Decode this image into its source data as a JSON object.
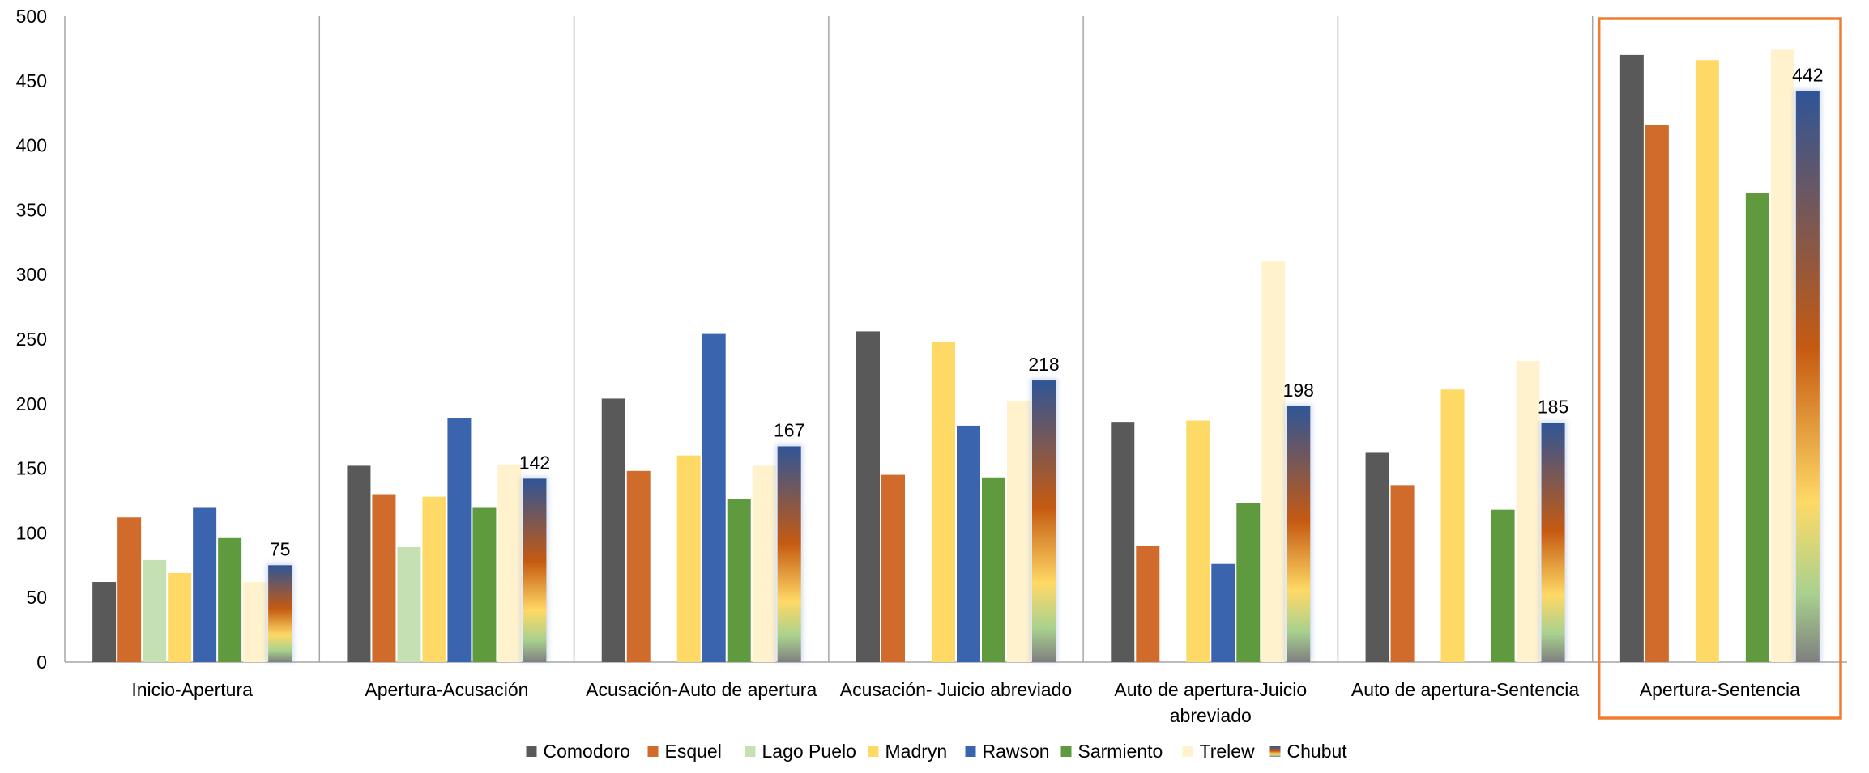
{
  "chart_data": {
    "type": "bar",
    "title": "",
    "xlabel": "",
    "ylabel": "",
    "ylim": [
      0,
      500
    ],
    "yticks": [
      0,
      50,
      100,
      150,
      200,
      250,
      300,
      350,
      400,
      450,
      500
    ],
    "grid": "vertical separators between categories",
    "legend_position": "bottom",
    "categories": [
      [
        "Inicio-Apertura"
      ],
      [
        "Apertura-Acusación"
      ],
      [
        "Acusación-Auto de apertura"
      ],
      [
        "Acusación- Juicio abreviado"
      ],
      [
        "Auto de apertura-Juicio",
        "abreviado"
      ],
      [
        "Auto de apertura-Sentencia"
      ],
      [
        "Apertura-Sentencia"
      ]
    ],
    "highlighted_category": "Apertura-Sentencia",
    "series": [
      {
        "name": "Comodoro",
        "color": "#595959",
        "values": [
          62,
          152,
          204,
          256,
          186,
          162,
          470
        ]
      },
      {
        "name": "Esquel",
        "color": "#D06B2B",
        "values": [
          112,
          130,
          148,
          145,
          90,
          137,
          416
        ]
      },
      {
        "name": "Lago Puelo",
        "color": "#C5E0B3",
        "values": [
          79,
          89,
          null,
          null,
          null,
          null,
          null
        ]
      },
      {
        "name": "Madryn",
        "color": "#FFD966",
        "values": [
          69,
          128,
          160,
          248,
          187,
          211,
          466
        ]
      },
      {
        "name": "Rawson",
        "color": "#3B64AE",
        "values": [
          120,
          189,
          254,
          183,
          76,
          null,
          null
        ]
      },
      {
        "name": "Sarmiento",
        "color": "#5F9A3F",
        "values": [
          96,
          120,
          126,
          143,
          123,
          118,
          363
        ]
      },
      {
        "name": "Trelew",
        "color": "#FFF2CC",
        "values": [
          62,
          153,
          152,
          202,
          310,
          233,
          474
        ]
      },
      {
        "name": "Chubut",
        "color": "gradient",
        "values": [
          75,
          142,
          167,
          218,
          198,
          185,
          442
        ]
      }
    ],
    "data_labels": {
      "series": "Chubut",
      "values": [
        "75",
        "142",
        "167",
        "218",
        "198",
        "185",
        "442"
      ]
    }
  },
  "colors": {
    "axis": "#A6A6A6",
    "highlight_box": "#ED7D31",
    "chubut_gradient": [
      "#2F5597",
      "#C55A11",
      "#FFD966",
      "#A9D18E",
      "#7F7F7F"
    ]
  }
}
